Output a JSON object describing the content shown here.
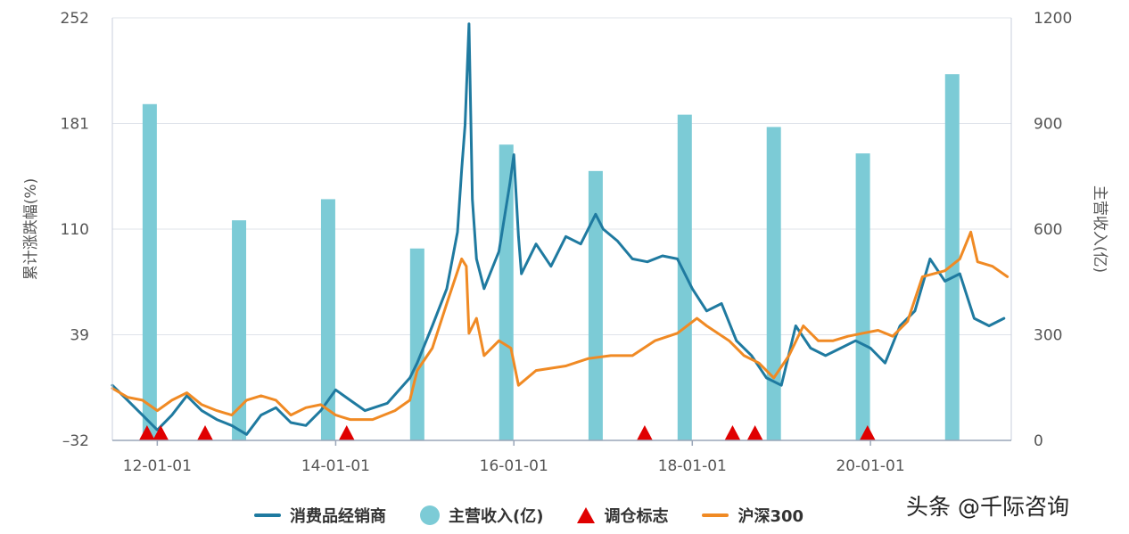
{
  "chart_data": {
    "type": "line",
    "x_type": "date",
    "x_range": [
      "2011-07-01",
      "2021-07-31"
    ],
    "x_ticks": [
      "12-01-01",
      "14-01-01",
      "16-01-01",
      "18-01-01",
      "20-01-01"
    ],
    "y_left": {
      "label": "累计涨跌幅(%)",
      "ticks": [
        -32,
        39,
        110,
        181,
        252
      ],
      "range": [
        -32,
        252
      ]
    },
    "y_right": {
      "label": "主营收入(亿)",
      "ticks": [
        0,
        300,
        600,
        900,
        1200
      ],
      "range": [
        0,
        1200
      ]
    },
    "grid": "horizontal",
    "legend_position": "bottom",
    "series": [
      {
        "name": "消费品经销商",
        "type": "line",
        "axis": "left",
        "color": "#1f7aa0",
        "points": [
          [
            "2011-07-01",
            5
          ],
          [
            "2011-09-01",
            -5
          ],
          [
            "2011-11-01",
            -15
          ],
          [
            "2012-01-01",
            -25
          ],
          [
            "2012-03-01",
            -15
          ],
          [
            "2012-05-01",
            -2
          ],
          [
            "2012-07-01",
            -12
          ],
          [
            "2012-09-01",
            -18
          ],
          [
            "2012-11-01",
            -22
          ],
          [
            "2013-01-01",
            -28
          ],
          [
            "2013-03-01",
            -15
          ],
          [
            "2013-05-01",
            -10
          ],
          [
            "2013-07-01",
            -20
          ],
          [
            "2013-09-01",
            -22
          ],
          [
            "2013-11-01",
            -12
          ],
          [
            "2014-01-01",
            2
          ],
          [
            "2014-03-01",
            -5
          ],
          [
            "2014-05-01",
            -12
          ],
          [
            "2014-08-01",
            -7
          ],
          [
            "2014-11-01",
            10
          ],
          [
            "2014-12-01",
            20
          ],
          [
            "2015-02-01",
            45
          ],
          [
            "2015-04-01",
            70
          ],
          [
            "2015-05-15",
            108
          ],
          [
            "2015-06-01",
            150
          ],
          [
            "2015-06-15",
            180
          ],
          [
            "2015-07-01",
            248
          ],
          [
            "2015-07-15",
            130
          ],
          [
            "2015-08-01",
            90
          ],
          [
            "2015-09-01",
            70
          ],
          [
            "2015-11-01",
            95
          ],
          [
            "2015-12-15",
            140
          ],
          [
            "2016-01-01",
            160
          ],
          [
            "2016-01-20",
            105
          ],
          [
            "2016-02-01",
            80
          ],
          [
            "2016-04-01",
            100
          ],
          [
            "2016-06-01",
            85
          ],
          [
            "2016-08-01",
            105
          ],
          [
            "2016-10-01",
            100
          ],
          [
            "2016-12-01",
            120
          ],
          [
            "2017-01-01",
            110
          ],
          [
            "2017-03-01",
            102
          ],
          [
            "2017-05-01",
            90
          ],
          [
            "2017-07-01",
            88
          ],
          [
            "2017-09-01",
            92
          ],
          [
            "2017-11-01",
            90
          ],
          [
            "2018-01-01",
            70
          ],
          [
            "2018-03-01",
            55
          ],
          [
            "2018-05-01",
            60
          ],
          [
            "2018-07-01",
            35
          ],
          [
            "2018-09-01",
            25
          ],
          [
            "2018-11-01",
            10
          ],
          [
            "2019-01-01",
            5
          ],
          [
            "2019-03-01",
            45
          ],
          [
            "2019-05-01",
            30
          ],
          [
            "2019-07-01",
            25
          ],
          [
            "2019-09-01",
            30
          ],
          [
            "2019-11-01",
            35
          ],
          [
            "2020-01-01",
            30
          ],
          [
            "2020-03-01",
            20
          ],
          [
            "2020-05-01",
            45
          ],
          [
            "2020-07-01",
            55
          ],
          [
            "2020-09-01",
            90
          ],
          [
            "2020-11-01",
            75
          ],
          [
            "2021-01-01",
            80
          ],
          [
            "2021-03-01",
            50
          ],
          [
            "2021-05-01",
            45
          ],
          [
            "2021-07-01",
            50
          ]
        ]
      },
      {
        "name": "沪深300",
        "type": "line",
        "axis": "left",
        "color": "#f08a24",
        "points": [
          [
            "2011-07-01",
            3
          ],
          [
            "2011-09-01",
            -3
          ],
          [
            "2011-11-01",
            -5
          ],
          [
            "2012-01-01",
            -12
          ],
          [
            "2012-03-01",
            -5
          ],
          [
            "2012-05-01",
            0
          ],
          [
            "2012-07-01",
            -8
          ],
          [
            "2012-09-01",
            -12
          ],
          [
            "2012-11-01",
            -15
          ],
          [
            "2013-01-01",
            -5
          ],
          [
            "2013-03-01",
            -2
          ],
          [
            "2013-05-01",
            -5
          ],
          [
            "2013-07-01",
            -15
          ],
          [
            "2013-09-01",
            -10
          ],
          [
            "2013-11-01",
            -8
          ],
          [
            "2014-01-01",
            -15
          ],
          [
            "2014-03-01",
            -18
          ],
          [
            "2014-06-01",
            -18
          ],
          [
            "2014-09-01",
            -12
          ],
          [
            "2014-11-01",
            -5
          ],
          [
            "2014-12-01",
            15
          ],
          [
            "2015-02-01",
            30
          ],
          [
            "2015-04-01",
            60
          ],
          [
            "2015-06-01",
            90
          ],
          [
            "2015-06-20",
            85
          ],
          [
            "2015-07-01",
            40
          ],
          [
            "2015-08-01",
            50
          ],
          [
            "2015-09-01",
            25
          ],
          [
            "2015-11-01",
            35
          ],
          [
            "2015-12-20",
            30
          ],
          [
            "2016-01-20",
            5
          ],
          [
            "2016-04-01",
            15
          ],
          [
            "2016-08-01",
            18
          ],
          [
            "2016-11-01",
            23
          ],
          [
            "2017-02-01",
            25
          ],
          [
            "2017-05-01",
            25
          ],
          [
            "2017-08-01",
            35
          ],
          [
            "2017-11-01",
            40
          ],
          [
            "2018-01-20",
            50
          ],
          [
            "2018-03-01",
            45
          ],
          [
            "2018-06-01",
            35
          ],
          [
            "2018-08-01",
            25
          ],
          [
            "2018-10-01",
            20
          ],
          [
            "2018-12-01",
            10
          ],
          [
            "2019-02-01",
            25
          ],
          [
            "2019-04-01",
            45
          ],
          [
            "2019-06-01",
            35
          ],
          [
            "2019-08-01",
            35
          ],
          [
            "2019-10-01",
            38
          ],
          [
            "2019-12-01",
            40
          ],
          [
            "2020-02-01",
            42
          ],
          [
            "2020-04-01",
            38
          ],
          [
            "2020-06-01",
            48
          ],
          [
            "2020-08-01",
            78
          ],
          [
            "2020-11-01",
            82
          ],
          [
            "2021-01-01",
            90
          ],
          [
            "2021-02-15",
            108
          ],
          [
            "2021-03-15",
            88
          ],
          [
            "2021-05-15",
            85
          ],
          [
            "2021-07-15",
            78
          ]
        ]
      },
      {
        "name": "主营收入(亿)",
        "type": "bar",
        "axis": "right",
        "color": "#7ccbd6",
        "points": [
          [
            "2011-12-01",
            955
          ],
          [
            "2012-12-01",
            625
          ],
          [
            "2013-12-01",
            685
          ],
          [
            "2014-12-01",
            545
          ],
          [
            "2015-12-01",
            840
          ],
          [
            "2016-12-01",
            765
          ],
          [
            "2017-12-01",
            925
          ],
          [
            "2018-12-01",
            890
          ],
          [
            "2019-12-01",
            815
          ],
          [
            "2020-12-01",
            1040
          ]
        ]
      },
      {
        "name": "调仓标志",
        "type": "marker",
        "color": "#e00000",
        "dates": [
          "2011-11-20",
          "2012-01-15",
          "2012-07-15",
          "2014-02-15",
          "2017-06-20",
          "2018-06-15",
          "2018-09-15",
          "2019-12-20"
        ]
      }
    ]
  },
  "legend": [
    {
      "label": "消费品经销商",
      "kind": "line",
      "color": "#1f7aa0"
    },
    {
      "label": "主营收入(亿)",
      "kind": "dot",
      "color": "#7ccbd6"
    },
    {
      "label": "调仓标志",
      "kind": "triangle",
      "color": "#e00000"
    },
    {
      "label": "沪深300",
      "kind": "line",
      "color": "#f08a24"
    }
  ],
  "watermark": "头条 @千际咨询"
}
